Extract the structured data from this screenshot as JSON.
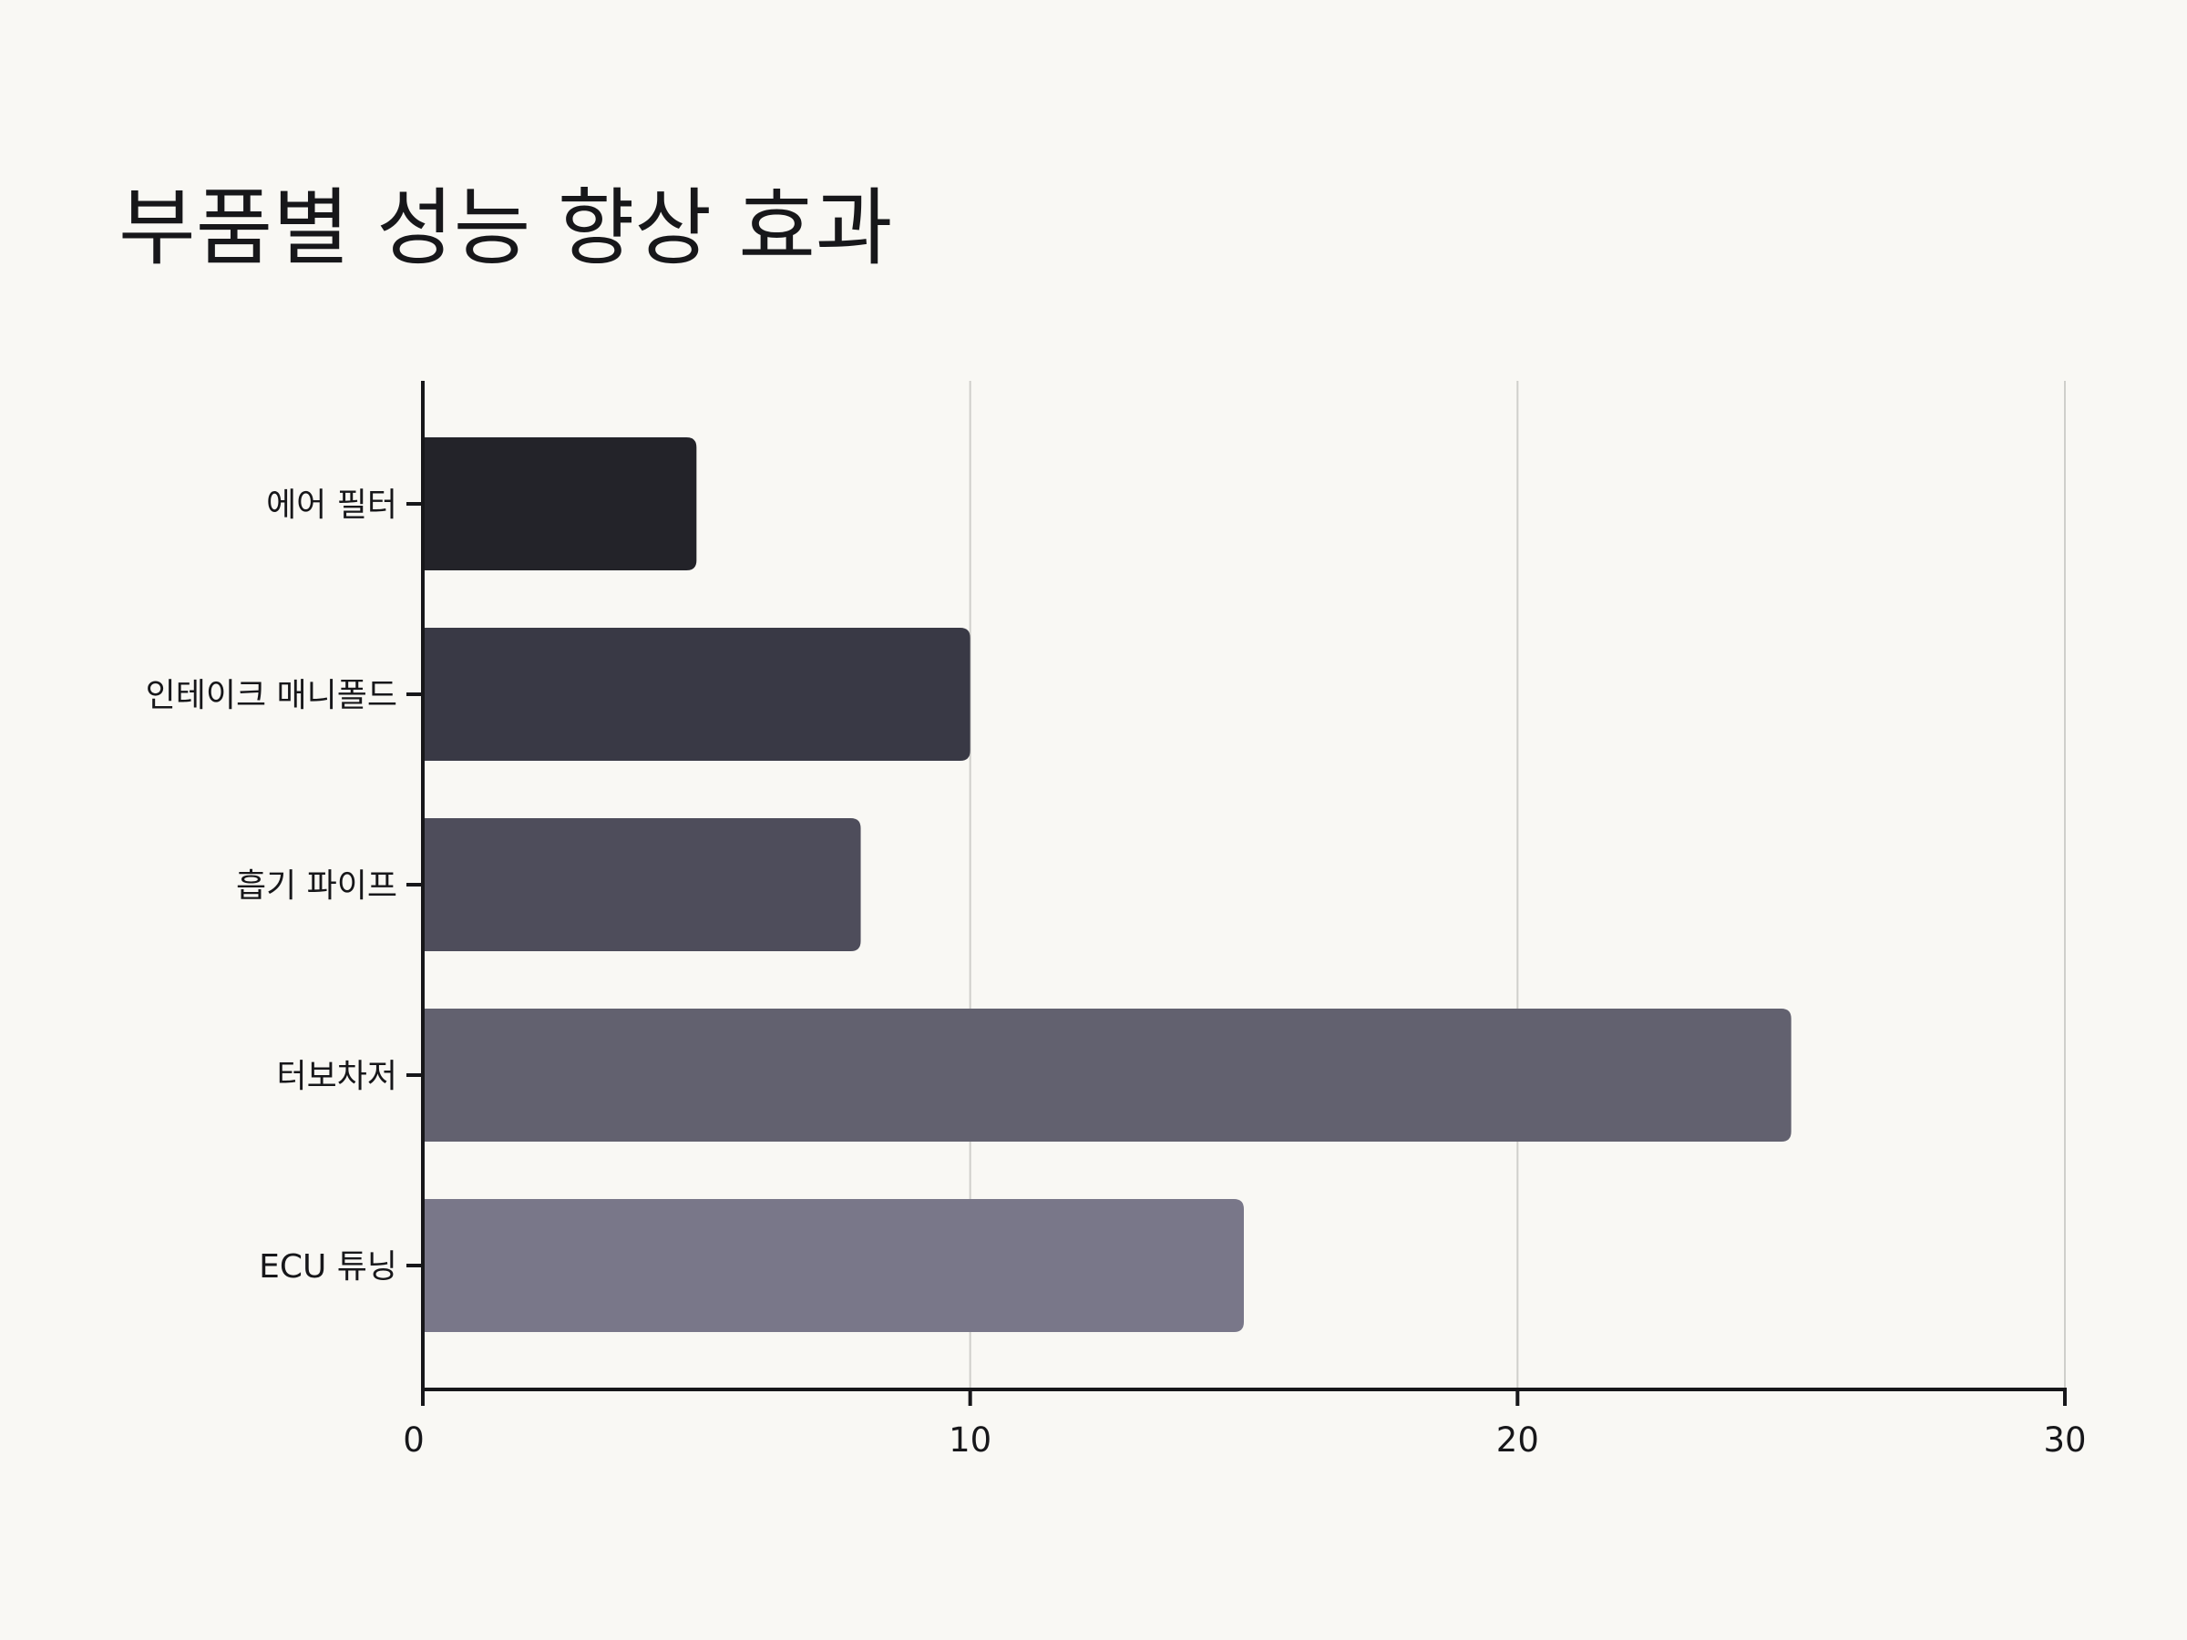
{
  "chart_data": {
    "type": "bar",
    "orientation": "horizontal",
    "title": "부품별 성능 향상 효과",
    "xlabel": "",
    "ylabel": "",
    "categories": [
      "에어 필터",
      "인테이크 매니폴드",
      "흡기 파이프",
      "터보차저",
      "ECU 튜닝"
    ],
    "values": [
      5,
      10,
      8,
      25,
      15
    ],
    "xlim": [
      0,
      30
    ],
    "xticks": [
      0,
      10,
      20,
      30
    ],
    "grid": "vertical",
    "legend": "none",
    "bar_colors": [
      "#232329",
      "#393945",
      "#4e4d5b",
      "#62616f",
      "#797789"
    ],
    "axis_color": "#17171a",
    "grid_color": "#cfcfcb",
    "background": "#f9f8f4"
  }
}
